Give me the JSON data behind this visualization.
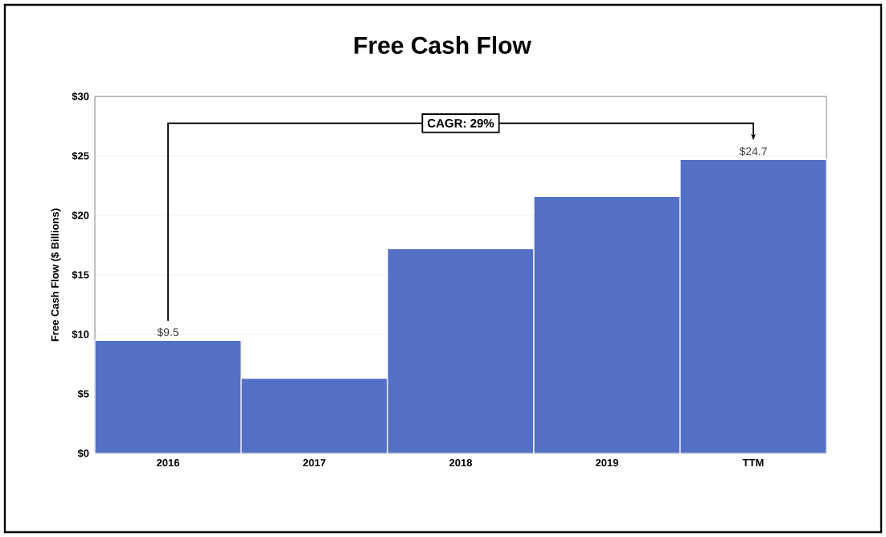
{
  "chart_data": {
    "type": "bar",
    "title": "Free Cash Flow",
    "ylabel": "Free Cash Flow ($ Billions)",
    "categories": [
      "2016",
      "2017",
      "2018",
      "2019",
      "TTM"
    ],
    "values": [
      9.5,
      6.3,
      17.2,
      21.6,
      24.7
    ],
    "value_labels": [
      "$9.5",
      null,
      null,
      null,
      "$24.7"
    ],
    "color": "#5470c6",
    "ylim": [
      0,
      30
    ],
    "yticks": [
      {
        "value": 0,
        "label": "$0"
      },
      {
        "value": 5,
        "label": "$5"
      },
      {
        "value": 10,
        "label": "$10"
      },
      {
        "value": 15,
        "label": "$15"
      },
      {
        "value": 20,
        "label": "$20"
      },
      {
        "value": 25,
        "label": "$25"
      },
      {
        "value": 30,
        "label": "$30"
      }
    ],
    "grid": "y",
    "annotations": [
      "CAGR: 29%"
    ]
  }
}
